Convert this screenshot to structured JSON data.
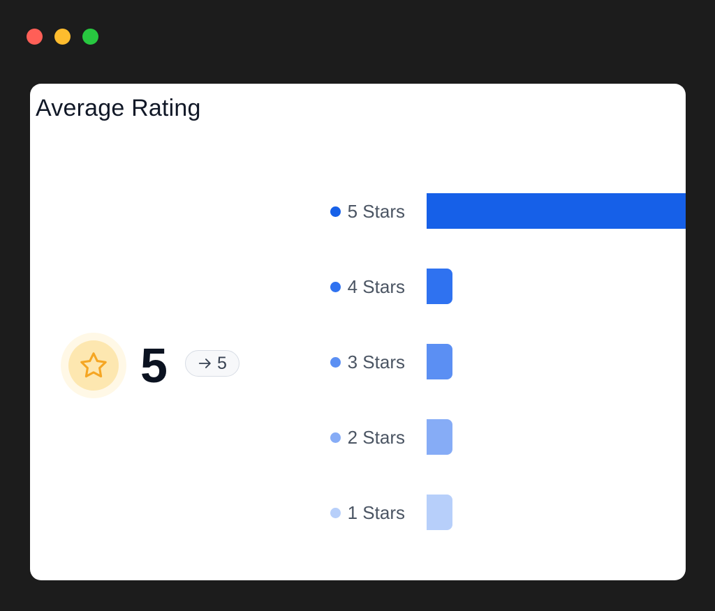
{
  "window": {
    "controls": [
      {
        "name": "close",
        "color": "#ff5f57"
      },
      {
        "name": "minimize",
        "color": "#febc2e"
      },
      {
        "name": "maximize",
        "color": "#28c840"
      }
    ]
  },
  "card": {
    "title": "Average Rating",
    "summary": {
      "icon": "star-icon",
      "value": "5",
      "trend_icon": "arrow-right-icon",
      "trend_value": "5"
    }
  },
  "chart_data": {
    "type": "bar",
    "orientation": "horizontal",
    "categories": [
      "5 Stars",
      "4 Stars",
      "3 Stars",
      "2 Stars",
      "1 Stars"
    ],
    "values": [
      1.0,
      0.1,
      0.1,
      0.1,
      0.1
    ],
    "colors": [
      "#1660e8",
      "#2f72f0",
      "#5b8ff3",
      "#86acf6",
      "#b7cffa"
    ],
    "xlim": [
      0,
      1
    ],
    "grid": false,
    "legend": "none"
  }
}
